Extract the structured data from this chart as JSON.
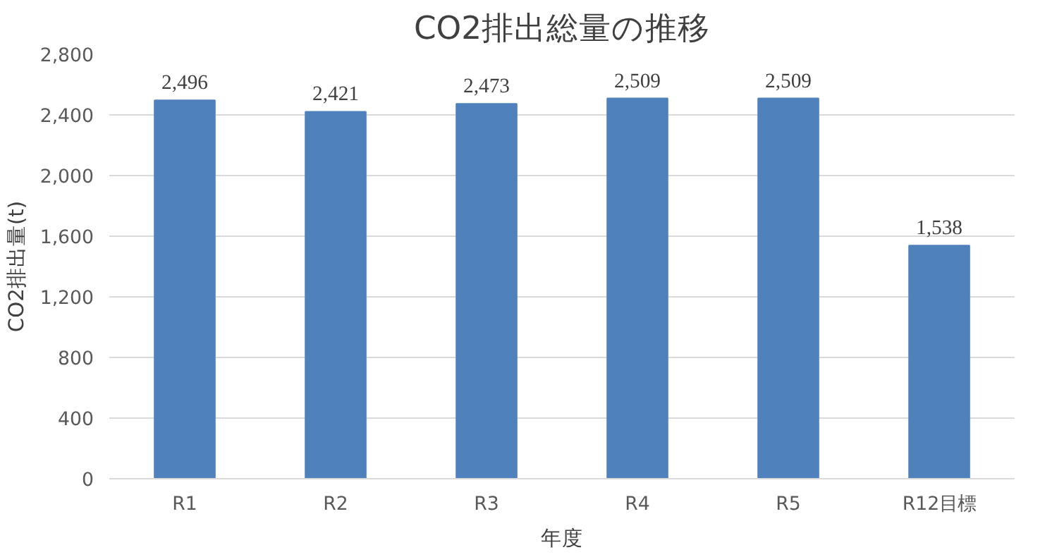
{
  "chart_data": {
    "type": "bar",
    "title": "CO2排出総量の推移",
    "xlabel": "年度",
    "ylabel": "CO2排出量(t)",
    "categories": [
      "R1",
      "R2",
      "R3",
      "R4",
      "R5",
      "R12目標"
    ],
    "values": [
      2496,
      2421,
      2473,
      2509,
      2509,
      1538
    ],
    "value_labels": [
      "2,496",
      "2,421",
      "2,473",
      "2,509",
      "2,509",
      "1,538"
    ],
    "color": "#4f81bd",
    "ylim": [
      0,
      2800
    ],
    "yticks": [
      0,
      400,
      800,
      {
        "value": 1200,
        "label": "1,200"
      },
      {
        "value": 1600,
        "label": "1,600"
      },
      {
        "value": 2000,
        "label": "2,000"
      },
      {
        "value": 2400,
        "label": "2,400"
      },
      {
        "value": 2800,
        "label": "2,800"
      }
    ],
    "grid": "y"
  }
}
